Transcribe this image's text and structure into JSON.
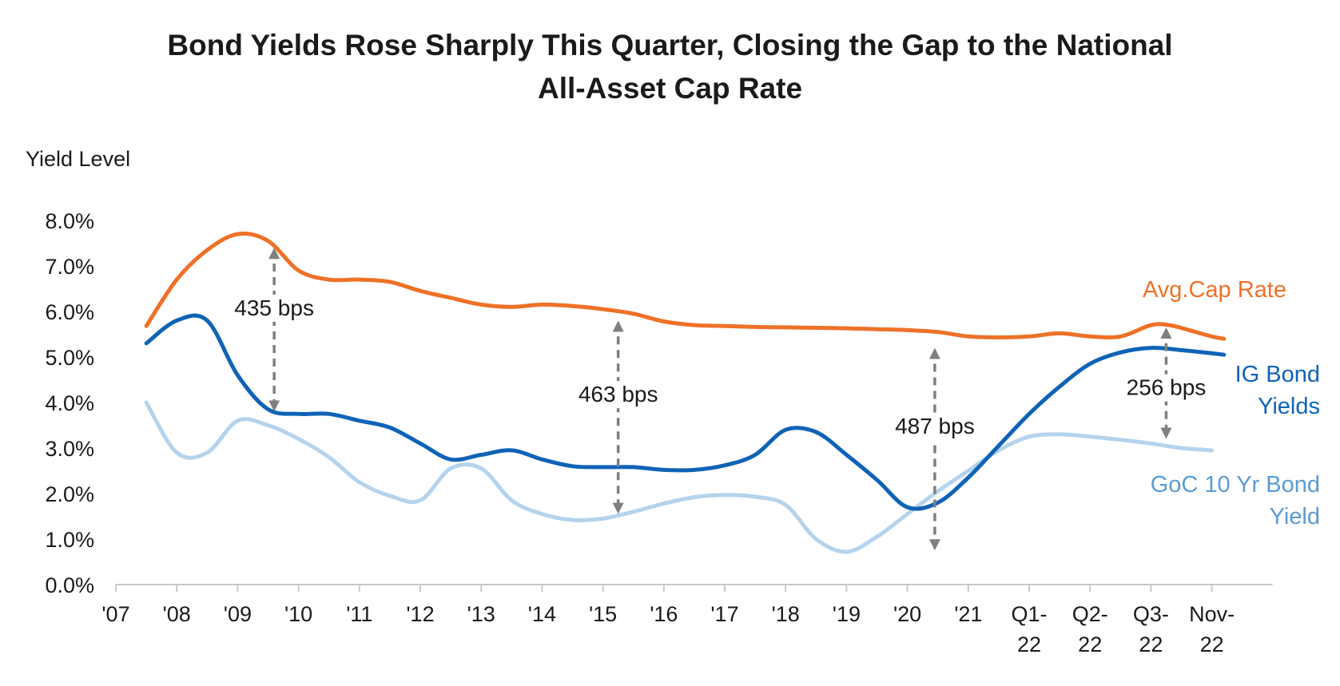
{
  "chart_data": {
    "type": "line",
    "title": [
      "Bond Yields Rose Sharply This Quarter, Closing the Gap to the National",
      "All-Asset Cap Rate"
    ],
    "ylabel": "Yield Level",
    "xlabel": "",
    "ylim": [
      0,
      8
    ],
    "yticks": [
      "0.0%",
      "1.0%",
      "2.0%",
      "3.0%",
      "4.0%",
      "5.0%",
      "6.0%",
      "7.0%",
      "8.0%"
    ],
    "xticks": [
      {
        "x": 0,
        "lines": [
          "'07"
        ]
      },
      {
        "x": 1,
        "lines": [
          "'08"
        ]
      },
      {
        "x": 2,
        "lines": [
          "'09"
        ]
      },
      {
        "x": 3,
        "lines": [
          "'10"
        ]
      },
      {
        "x": 4,
        "lines": [
          "'11"
        ]
      },
      {
        "x": 5,
        "lines": [
          "'12"
        ]
      },
      {
        "x": 6,
        "lines": [
          "'13"
        ]
      },
      {
        "x": 7,
        "lines": [
          "'14"
        ]
      },
      {
        "x": 8,
        "lines": [
          "'15"
        ]
      },
      {
        "x": 9,
        "lines": [
          "'16"
        ]
      },
      {
        "x": 10,
        "lines": [
          "'17"
        ]
      },
      {
        "x": 11,
        "lines": [
          "'18"
        ]
      },
      {
        "x": 12,
        "lines": [
          "'19"
        ]
      },
      {
        "x": 13,
        "lines": [
          "'20"
        ]
      },
      {
        "x": 14,
        "lines": [
          "'21"
        ]
      },
      {
        "x": 15,
        "lines": [
          "Q1-",
          "22"
        ]
      },
      {
        "x": 16,
        "lines": [
          "Q2-",
          "22"
        ]
      },
      {
        "x": 17,
        "lines": [
          "Q3-",
          "22"
        ]
      },
      {
        "x": 18,
        "lines": [
          "Nov-",
          "22"
        ]
      }
    ],
    "series": [
      {
        "name": "Avg.Cap Rate",
        "label_lines": [
          "Avg.Cap Rate"
        ],
        "color": "#ee7128",
        "points": [
          [
            0.5,
            5.68
          ],
          [
            1.0,
            6.7
          ],
          [
            1.5,
            7.35
          ],
          [
            2.0,
            7.7
          ],
          [
            2.5,
            7.55
          ],
          [
            3.0,
            6.9
          ],
          [
            3.5,
            6.7
          ],
          [
            4.0,
            6.7
          ],
          [
            4.5,
            6.65
          ],
          [
            5.0,
            6.45
          ],
          [
            5.5,
            6.3
          ],
          [
            6.0,
            6.15
          ],
          [
            6.5,
            6.1
          ],
          [
            7.0,
            6.15
          ],
          [
            7.5,
            6.12
          ],
          [
            8.0,
            6.05
          ],
          [
            8.5,
            5.95
          ],
          [
            9.0,
            5.78
          ],
          [
            9.5,
            5.7
          ],
          [
            10.0,
            5.68
          ],
          [
            10.5,
            5.66
          ],
          [
            11.0,
            5.65
          ],
          [
            11.5,
            5.64
          ],
          [
            12.0,
            5.63
          ],
          [
            12.5,
            5.61
          ],
          [
            13.0,
            5.59
          ],
          [
            13.5,
            5.55
          ],
          [
            14.0,
            5.45
          ],
          [
            14.5,
            5.43
          ],
          [
            15.0,
            5.45
          ],
          [
            15.5,
            5.52
          ],
          [
            16.0,
            5.45
          ],
          [
            16.5,
            5.45
          ],
          [
            17.0,
            5.7
          ],
          [
            17.3,
            5.7
          ],
          [
            17.6,
            5.6
          ],
          [
            18.0,
            5.45
          ],
          [
            18.2,
            5.4
          ]
        ]
      },
      {
        "name": "IG Bond Yields",
        "label_lines": [
          "IG Bond",
          "Yields"
        ],
        "color": "#0f63b6",
        "points": [
          [
            0.5,
            5.3
          ],
          [
            1.0,
            5.8
          ],
          [
            1.5,
            5.8
          ],
          [
            2.0,
            4.6
          ],
          [
            2.5,
            3.85
          ],
          [
            3.0,
            3.75
          ],
          [
            3.5,
            3.75
          ],
          [
            4.0,
            3.6
          ],
          [
            4.5,
            3.45
          ],
          [
            5.0,
            3.1
          ],
          [
            5.5,
            2.75
          ],
          [
            6.0,
            2.85
          ],
          [
            6.5,
            2.95
          ],
          [
            7.0,
            2.75
          ],
          [
            7.5,
            2.6
          ],
          [
            8.0,
            2.58
          ],
          [
            8.5,
            2.58
          ],
          [
            9.0,
            2.52
          ],
          [
            9.5,
            2.52
          ],
          [
            10.0,
            2.62
          ],
          [
            10.5,
            2.85
          ],
          [
            11.0,
            3.4
          ],
          [
            11.5,
            3.35
          ],
          [
            12.0,
            2.85
          ],
          [
            12.5,
            2.3
          ],
          [
            13.0,
            1.7
          ],
          [
            13.5,
            1.8
          ],
          [
            14.0,
            2.35
          ],
          [
            14.5,
            3.05
          ],
          [
            15.0,
            3.75
          ],
          [
            15.5,
            4.35
          ],
          [
            16.0,
            4.85
          ],
          [
            16.5,
            5.1
          ],
          [
            17.0,
            5.2
          ],
          [
            17.5,
            5.15
          ],
          [
            18.0,
            5.08
          ],
          [
            18.2,
            5.05
          ]
        ]
      },
      {
        "name": "GoC 10 Yr Bond Yield",
        "label_lines": [
          "GoC 10 Yr Bond",
          "Yield"
        ],
        "color": "#b5d3ec",
        "points": [
          [
            0.5,
            4.0
          ],
          [
            1.0,
            2.9
          ],
          [
            1.5,
            2.9
          ],
          [
            2.0,
            3.6
          ],
          [
            2.5,
            3.5
          ],
          [
            3.0,
            3.2
          ],
          [
            3.5,
            2.8
          ],
          [
            4.0,
            2.25
          ],
          [
            4.5,
            1.95
          ],
          [
            5.0,
            1.85
          ],
          [
            5.5,
            2.55
          ],
          [
            6.0,
            2.55
          ],
          [
            6.5,
            1.85
          ],
          [
            7.0,
            1.55
          ],
          [
            7.5,
            1.42
          ],
          [
            8.0,
            1.45
          ],
          [
            8.5,
            1.6
          ],
          [
            9.0,
            1.78
          ],
          [
            9.5,
            1.92
          ],
          [
            10.0,
            1.97
          ],
          [
            10.5,
            1.93
          ],
          [
            11.0,
            1.75
          ],
          [
            11.5,
            1.0
          ],
          [
            12.0,
            0.72
          ],
          [
            12.5,
            1.05
          ],
          [
            13.0,
            1.55
          ],
          [
            13.5,
            2.05
          ],
          [
            14.0,
            2.5
          ],
          [
            14.5,
            2.95
          ],
          [
            15.0,
            3.25
          ],
          [
            15.5,
            3.3
          ],
          [
            16.0,
            3.25
          ],
          [
            16.5,
            3.18
          ],
          [
            17.0,
            3.1
          ],
          [
            17.5,
            3.0
          ],
          [
            18.0,
            2.95
          ]
        ]
      }
    ],
    "annotations": [
      {
        "x": 2.6,
        "y_top": 7.35,
        "y_bottom": 3.85,
        "label": "435 bps",
        "label_y": 5.95
      },
      {
        "x": 8.25,
        "y_top": 5.75,
        "y_bottom": 1.6,
        "label": "463 bps",
        "label_y": 4.05
      },
      {
        "x": 13.45,
        "y_top": 5.15,
        "y_bottom": 0.8,
        "label": "487 bps",
        "label_y": 3.35
      },
      {
        "x": 17.25,
        "y_top": 5.6,
        "y_bottom": 3.25,
        "label": "256 bps",
        "label_y": 4.2
      }
    ]
  }
}
